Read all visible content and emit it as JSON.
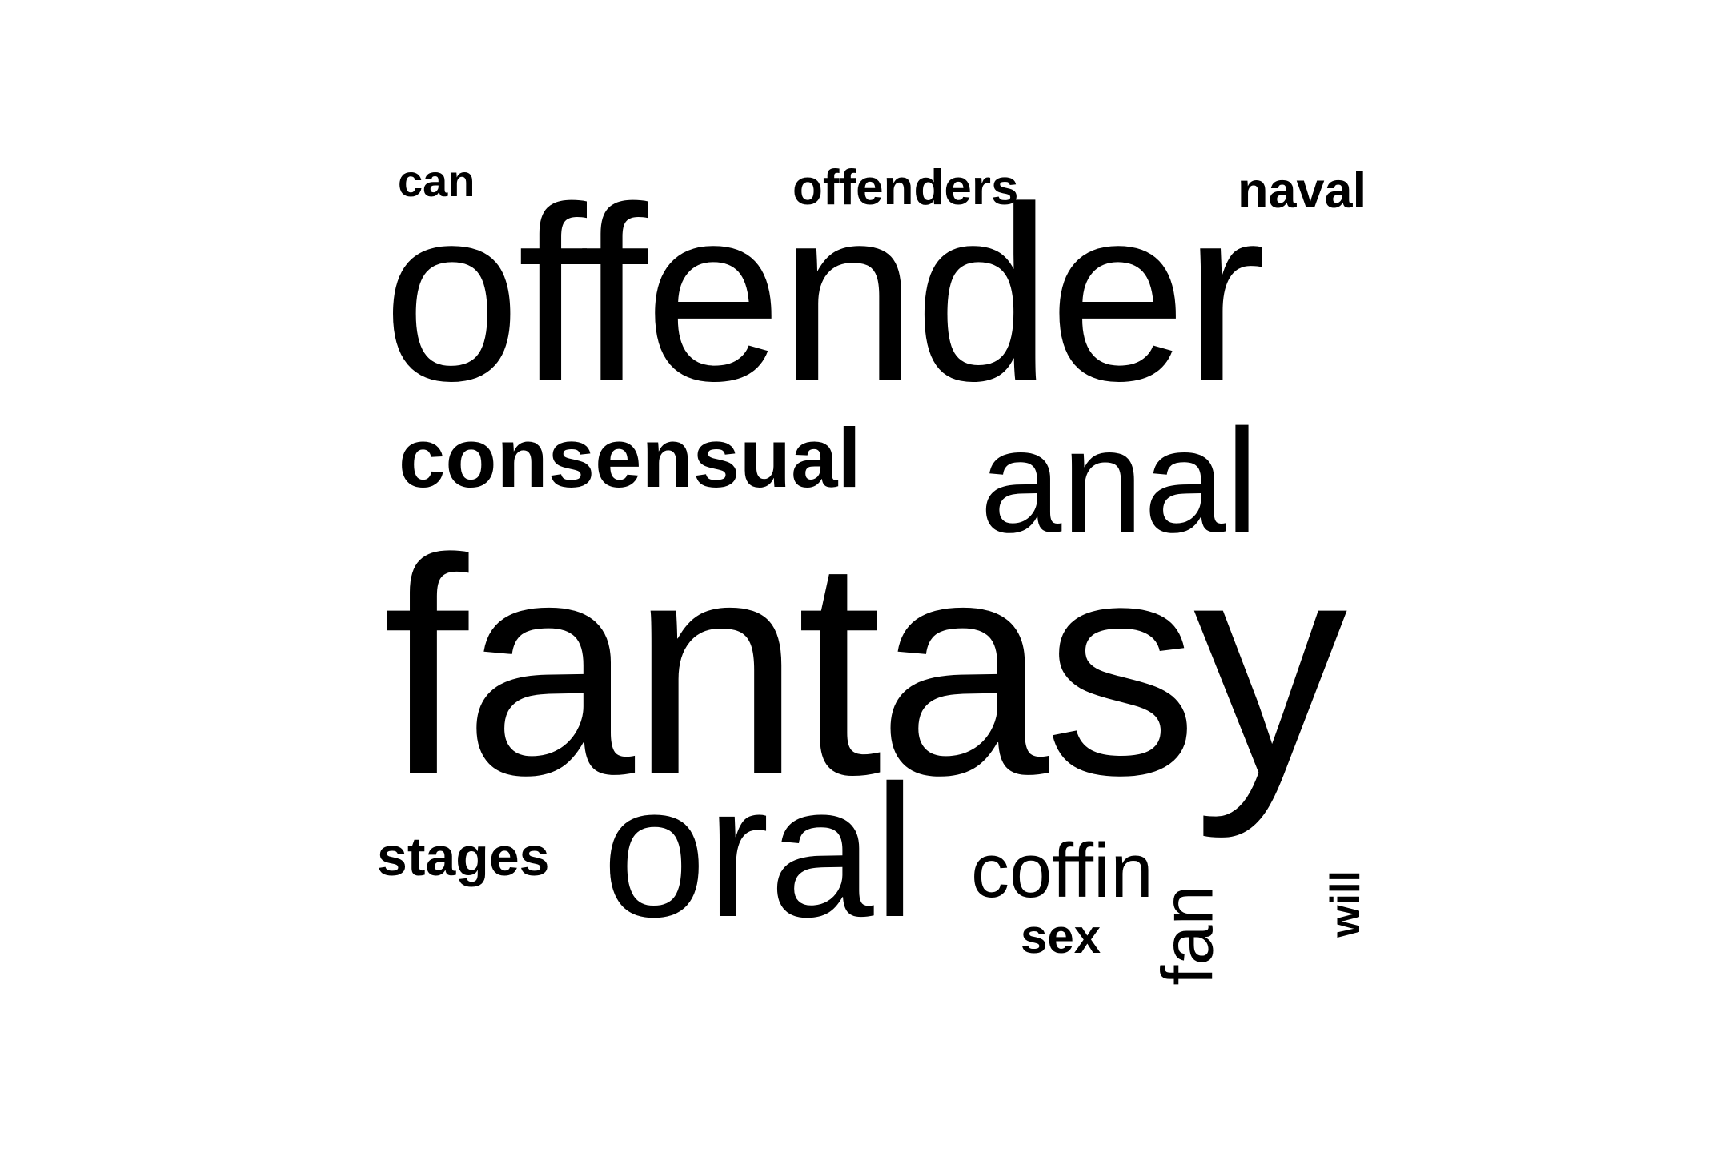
{
  "words": [
    {
      "text": "can"
    },
    {
      "text": "offenders"
    },
    {
      "text": "naval"
    },
    {
      "text": "offender"
    },
    {
      "text": "consensual"
    },
    {
      "text": "anal"
    },
    {
      "text": "fantasy"
    },
    {
      "text": "stages"
    },
    {
      "text": "oral"
    },
    {
      "text": "coffin"
    },
    {
      "text": "sex"
    },
    {
      "text": "fan",
      "orientation": "vertical"
    },
    {
      "text": "will",
      "orientation": "vertical"
    }
  ],
  "colors": {
    "text": "#000000",
    "background": "#ffffff"
  }
}
